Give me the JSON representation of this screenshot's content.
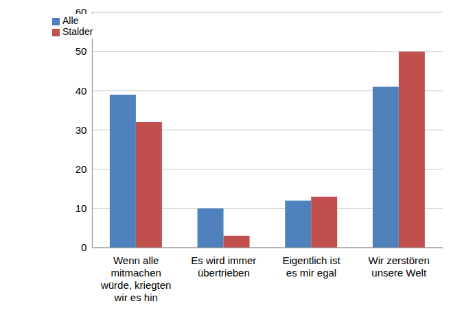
{
  "chart_data": {
    "type": "bar",
    "categories": [
      "Wenn alle mitmachen würde, kriegten wir es hin",
      "Es wird immer übertrieben",
      "Eigentlich ist es mir egal",
      "Wir zerstören unsere Welt"
    ],
    "series": [
      {
        "name": "Alle",
        "color": "#4f81bd",
        "values": [
          39,
          10,
          12,
          41
        ]
      },
      {
        "name": "Stalder",
        "color": "#c0504d",
        "values": [
          32,
          3,
          13,
          50
        ]
      }
    ],
    "ylim": [
      0,
      60
    ],
    "yticks": [
      0,
      10,
      20,
      30,
      40,
      50,
      60
    ],
    "grid": true,
    "legend": "top-left"
  }
}
